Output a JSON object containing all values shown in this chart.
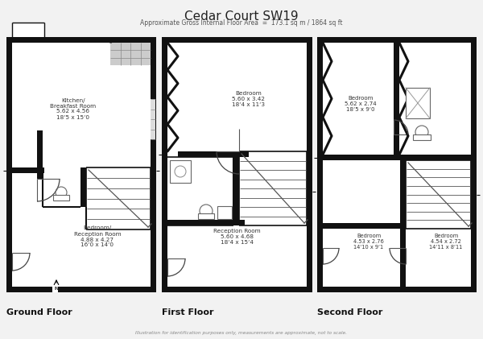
{
  "title": "Cedar Court SW19",
  "subtitle": "Approximate Gross Internal Floor Area  =  173.1 sq m / 1864 sq ft",
  "footer": "Illustration for identification purposes only, measurements are approximate, not to scale.",
  "floor_labels": [
    "Ground Floor",
    "First Floor",
    "Second Floor"
  ],
  "bg_color": "#f2f2f2",
  "wall_color": "#111111",
  "label_kitchen": "Kitchen/\nBreakfast Room\n5.62 x 4.56\n18‘5 x 15‘0",
  "label_bed_rec": "Bedroom/\nReception Room\n4.88 x 4.27\n16‘0 x 14‘0",
  "label_f_bed": "Bedroom\n5.60 x 3.42\n18‘4 x 11‘3",
  "label_f_rec": "Reception Room\n5.60 x 4.68\n18‘4 x 15‘4",
  "label_s_bed1": "Bedroom\n5.62 x 2.74\n18‘5 x 9‘0",
  "label_s_bed2": "Bedroom\n4.53 x 2.76\n14‘10 x 9‘1",
  "label_s_bed3": "Bedroom\n4.54 x 2.72\n14‘11 x 8‘11"
}
